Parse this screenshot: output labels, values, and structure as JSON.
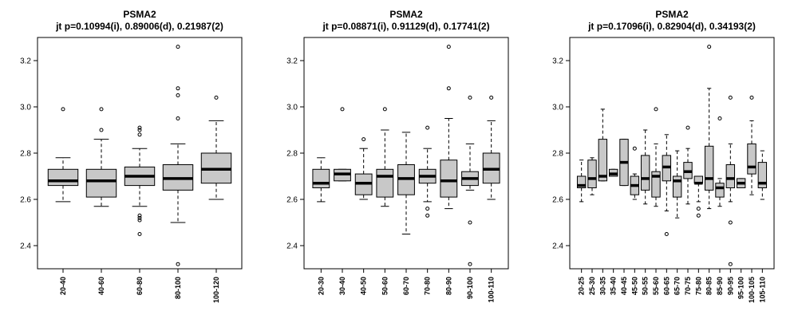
{
  "chart_data": [
    {
      "type": "box",
      "title": "PSMA2",
      "subtitle": "jt p=0.10994(i), 0.89006(d), 0.21987(2)",
      "ylim": [
        2.3,
        3.3
      ],
      "yticks": [
        2.4,
        2.6,
        2.8,
        3.0,
        3.2
      ],
      "ytick_labels": [
        "2.4",
        "2.6",
        "2.8",
        "3.0",
        "3.2"
      ],
      "categories": [
        "20-40",
        "40-60",
        "60-80",
        "80-100",
        "100-120"
      ],
      "boxes": [
        {
          "low": 2.59,
          "q1": 2.66,
          "median": 2.68,
          "q3": 2.73,
          "high": 2.78,
          "outliers": [
            2.99
          ]
        },
        {
          "low": 2.57,
          "q1": 2.61,
          "median": 2.68,
          "q3": 2.73,
          "high": 2.86,
          "outliers": [
            2.99,
            2.9
          ]
        },
        {
          "low": 2.57,
          "q1": 2.66,
          "median": 2.7,
          "q3": 2.74,
          "high": 2.82,
          "outliers": [
            2.91,
            2.9,
            2.88,
            2.53,
            2.52,
            2.51,
            2.45
          ]
        },
        {
          "low": 2.5,
          "q1": 2.64,
          "median": 2.69,
          "q3": 2.75,
          "high": 2.84,
          "outliers": [
            3.26,
            3.08,
            3.05,
            2.95,
            2.32
          ]
        },
        {
          "low": 2.6,
          "q1": 2.67,
          "median": 2.73,
          "q3": 2.8,
          "high": 2.94,
          "outliers": [
            3.04
          ]
        }
      ]
    },
    {
      "type": "box",
      "title": "PSMA2",
      "subtitle": "jt p=0.08871(i), 0.91129(d), 0.17741(2)",
      "ylim": [
        2.3,
        3.3
      ],
      "yticks": [
        2.4,
        2.6,
        2.8,
        3.0,
        3.2
      ],
      "ytick_labels": [
        "2.4",
        "2.6",
        "2.8",
        "3.0",
        "3.2"
      ],
      "categories": [
        "20-30",
        "30-40",
        "40-50",
        "50-60",
        "60-70",
        "70-80",
        "80-90",
        "90-100",
        "100-110"
      ],
      "boxes": [
        {
          "low": 2.59,
          "q1": 2.65,
          "median": 2.67,
          "q3": 2.73,
          "high": 2.78,
          "outliers": []
        },
        {
          "low": 2.68,
          "q1": 2.68,
          "median": 2.71,
          "q3": 2.73,
          "high": 2.73,
          "outliers": [
            2.99
          ]
        },
        {
          "low": 2.6,
          "q1": 2.62,
          "median": 2.67,
          "q3": 2.71,
          "high": 2.82,
          "outliers": [
            2.86
          ]
        },
        {
          "low": 2.57,
          "q1": 2.61,
          "median": 2.7,
          "q3": 2.73,
          "high": 2.9,
          "outliers": [
            2.99
          ]
        },
        {
          "low": 2.45,
          "q1": 2.62,
          "median": 2.69,
          "q3": 2.75,
          "high": 2.89,
          "outliers": []
        },
        {
          "low": 2.59,
          "q1": 2.67,
          "median": 2.7,
          "q3": 2.73,
          "high": 2.82,
          "outliers": [
            2.91,
            2.56,
            2.53
          ]
        },
        {
          "low": 2.56,
          "q1": 2.61,
          "median": 2.68,
          "q3": 2.77,
          "high": 2.95,
          "outliers": [
            3.26,
            3.08
          ]
        },
        {
          "low": 2.64,
          "q1": 2.66,
          "median": 2.69,
          "q3": 2.72,
          "high": 2.84,
          "outliers": [
            3.04,
            2.5,
            2.32
          ]
        },
        {
          "low": 2.6,
          "q1": 2.67,
          "median": 2.73,
          "q3": 2.8,
          "high": 2.94,
          "outliers": [
            3.04
          ]
        }
      ]
    },
    {
      "type": "box",
      "title": "PSMA2",
      "subtitle": "jt p=0.17096(i), 0.82904(d), 0.34193(2)",
      "ylim": [
        2.3,
        3.3
      ],
      "yticks": [
        2.4,
        2.6,
        2.8,
        3.0,
        3.2
      ],
      "ytick_labels": [
        "2.4",
        "2.6",
        "2.8",
        "3.0",
        "3.2"
      ],
      "categories": [
        "20-25",
        "25-30",
        "30-35",
        "35-40",
        "40-45",
        "45-50",
        "50-55",
        "55-60",
        "60-65",
        "65-70",
        "70-75",
        "75-80",
        "80-85",
        "85-90",
        "90-95",
        "95-100",
        "100-105",
        "105-110"
      ],
      "boxes": [
        {
          "low": 2.59,
          "q1": 2.65,
          "median": 2.66,
          "q3": 2.7,
          "high": 2.77,
          "outliers": []
        },
        {
          "low": 2.62,
          "q1": 2.65,
          "median": 2.69,
          "q3": 2.77,
          "high": 2.78,
          "outliers": []
        },
        {
          "low": 2.68,
          "q1": 2.68,
          "median": 2.7,
          "q3": 2.86,
          "high": 2.99,
          "outliers": []
        },
        {
          "low": 2.7,
          "q1": 2.7,
          "median": 2.71,
          "q3": 2.73,
          "high": 2.73,
          "outliers": []
        },
        {
          "low": 2.66,
          "q1": 2.66,
          "median": 2.76,
          "q3": 2.86,
          "high": 2.86,
          "outliers": []
        },
        {
          "low": 2.6,
          "q1": 2.62,
          "median": 2.66,
          "q3": 2.7,
          "high": 2.71,
          "outliers": [
            2.82
          ]
        },
        {
          "low": 2.58,
          "q1": 2.64,
          "median": 2.69,
          "q3": 2.79,
          "high": 2.9,
          "outliers": []
        },
        {
          "low": 2.57,
          "q1": 2.61,
          "median": 2.7,
          "q3": 2.72,
          "high": 2.84,
          "outliers": [
            2.99
          ]
        },
        {
          "low": 2.55,
          "q1": 2.68,
          "median": 2.74,
          "q3": 2.79,
          "high": 2.88,
          "outliers": [
            2.45
          ]
        },
        {
          "low": 2.52,
          "q1": 2.61,
          "median": 2.68,
          "q3": 2.7,
          "high": 2.81,
          "outliers": []
        },
        {
          "low": 2.58,
          "q1": 2.69,
          "median": 2.72,
          "q3": 2.76,
          "high": 2.82,
          "outliers": [
            2.91
          ]
        },
        {
          "low": 2.59,
          "q1": 2.67,
          "median": 2.67,
          "q3": 2.7,
          "high": 2.7,
          "outliers": [
            2.56,
            2.53
          ]
        },
        {
          "low": 2.56,
          "q1": 2.64,
          "median": 2.69,
          "q3": 2.83,
          "high": 3.08,
          "outliers": [
            3.26
          ]
        },
        {
          "low": 2.57,
          "q1": 2.61,
          "median": 2.65,
          "q3": 2.67,
          "high": 2.69,
          "outliers": [
            2.95
          ]
        },
        {
          "low": 2.59,
          "q1": 2.65,
          "median": 2.69,
          "q3": 2.75,
          "high": 2.84,
          "outliers": [
            3.04,
            2.5,
            2.32
          ]
        },
        {
          "low": 2.65,
          "q1": 2.65,
          "median": 2.67,
          "q3": 2.69,
          "high": 2.69,
          "outliers": []
        },
        {
          "low": 2.62,
          "q1": 2.71,
          "median": 2.74,
          "q3": 2.84,
          "high": 2.94,
          "outliers": [
            3.04
          ]
        },
        {
          "low": 2.6,
          "q1": 2.65,
          "median": 2.67,
          "q3": 2.76,
          "high": 2.81,
          "outliers": []
        }
      ]
    }
  ]
}
